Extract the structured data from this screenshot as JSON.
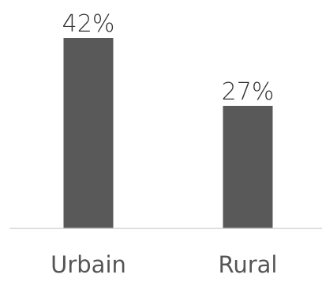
{
  "chart_data": {
    "type": "bar",
    "categories": [
      "Urbain",
      "Rural"
    ],
    "values": [
      42,
      27
    ],
    "value_labels": [
      "42%",
      "27%"
    ],
    "unit": "%",
    "title": "",
    "xlabel": "",
    "ylabel": "",
    "ylim": [
      0,
      45
    ],
    "grid": false,
    "legend": "none",
    "colors": {
      "bar": "#595959",
      "axis": "#d9d9d9",
      "value_text": "#333333",
      "category_text": "#555555"
    }
  }
}
